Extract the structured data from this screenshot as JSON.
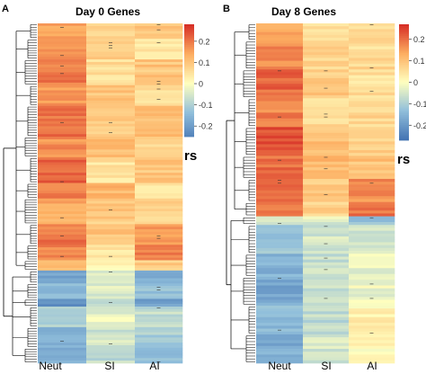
{
  "chart_data": [
    {
      "panel": "A",
      "type": "heatmap",
      "title": "Day 0 Genes",
      "columns": [
        "Neut",
        "SI",
        "AI"
      ],
      "colorbar_ticks": [
        "0.2",
        "0.1",
        "0",
        "-0.1",
        "-0.2"
      ],
      "colorbar_range": [
        -0.25,
        0.28
      ],
      "colorbar_label": "rs",
      "blocks": [
        {
          "rows": 6,
          "values": [
            0.14,
            0.07,
            0.1
          ]
        },
        {
          "rows": 8,
          "values": [
            0.18,
            0.09,
            0.05
          ]
        },
        {
          "rows": 10,
          "values": [
            0.2,
            0.06,
            0.1
          ]
        },
        {
          "rows": 8,
          "values": [
            0.16,
            0.1,
            0.06
          ]
        },
        {
          "rows": 12,
          "values": [
            0.21,
            0.08,
            0.12
          ]
        },
        {
          "rows": 8,
          "values": [
            0.17,
            0.11,
            0.06
          ]
        },
        {
          "rows": 10,
          "values": [
            0.22,
            0.05,
            0.1
          ]
        },
        {
          "rows": 6,
          "values": [
            0.2,
            0.12,
            0.03
          ]
        },
        {
          "rows": 10,
          "values": [
            0.14,
            0.09,
            0.08
          ]
        },
        {
          "rows": 8,
          "values": [
            0.2,
            0.1,
            0.15
          ]
        },
        {
          "rows": 6,
          "values": [
            0.18,
            0.05,
            0.2
          ]
        },
        {
          "rows": 4,
          "values": [
            0.1,
            0.02,
            0.09
          ]
        },
        {
          "rows": 5,
          "values": [
            -0.2,
            -0.05,
            -0.18
          ]
        },
        {
          "rows": 6,
          "values": [
            -0.16,
            -0.04,
            -0.13
          ]
        },
        {
          "rows": 3,
          "values": [
            -0.22,
            -0.07,
            -0.2
          ]
        },
        {
          "rows": 8,
          "values": [
            -0.11,
            -0.03,
            -0.08
          ]
        },
        {
          "rows": 8,
          "values": [
            -0.15,
            -0.06,
            -0.11
          ]
        },
        {
          "rows": 6,
          "values": [
            -0.18,
            -0.08,
            -0.14
          ]
        }
      ]
    },
    {
      "panel": "B",
      "type": "heatmap",
      "title": "Day 8 Genes",
      "columns": [
        "Neut",
        "SI",
        "AI"
      ],
      "colorbar_ticks": [
        "0.2",
        "0.1",
        "0",
        "-0.1",
        "-0.2"
      ],
      "colorbar_range": [
        -0.27,
        0.27
      ],
      "colorbar_label": "rs",
      "blocks": [
        {
          "rows": 6,
          "values": [
            0.14,
            0.05,
            0.06
          ]
        },
        {
          "rows": 10,
          "values": [
            0.17,
            0.07,
            0.06
          ]
        },
        {
          "rows": 10,
          "values": [
            0.21,
            0.09,
            0.05
          ]
        },
        {
          "rows": 10,
          "values": [
            0.18,
            0.06,
            0.07
          ]
        },
        {
          "rows": 10,
          "values": [
            0.23,
            0.1,
            0.08
          ]
        },
        {
          "rows": 8,
          "values": [
            0.2,
            0.12,
            0.1
          ]
        },
        {
          "rows": 8,
          "values": [
            0.22,
            0.09,
            0.17
          ]
        },
        {
          "rows": 5,
          "values": [
            0.19,
            0.07,
            0.2
          ]
        },
        {
          "rows": 3,
          "values": [
            -0.07,
            -0.04,
            -0.12
          ]
        },
        {
          "rows": 10,
          "values": [
            -0.13,
            -0.05,
            -0.05
          ]
        },
        {
          "rows": 8,
          "values": [
            -0.16,
            -0.07,
            -0.03
          ]
        },
        {
          "rows": 10,
          "values": [
            -0.18,
            -0.06,
            -0.02
          ]
        },
        {
          "rows": 10,
          "values": [
            -0.14,
            -0.08,
            0.02
          ]
        },
        {
          "rows": 10,
          "values": [
            -0.17,
            -0.05,
            0.01
          ]
        }
      ]
    }
  ],
  "labels": {
    "panel_a": "A",
    "panel_b": "B"
  }
}
